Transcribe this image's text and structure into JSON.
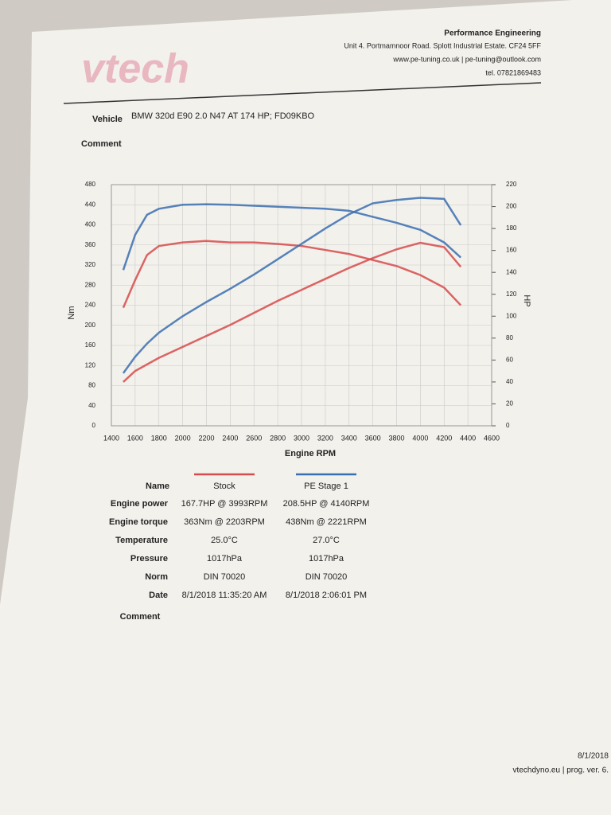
{
  "header": {
    "logo": "vtech",
    "company": "Performance Engineering",
    "address": "Unit 4. Portmamnoor Road. Splott Industrial Estate. CF24 5FF",
    "web": "www.pe-tuning.co.uk | pe-tuning@outlook.com",
    "phone": "tel. 07821869483"
  },
  "vehicle": {
    "label": "Vehicle",
    "value": "BMW 320d E90 2.0 N47 AT 174 HP; FD09KBO"
  },
  "comment_label": "Comment",
  "chart_data": {
    "type": "line",
    "x": [
      1500,
      1600,
      1700,
      1800,
      2000,
      2200,
      2400,
      2600,
      2800,
      3000,
      3200,
      3400,
      3600,
      3800,
      4000,
      4200,
      4340
    ],
    "series": [
      {
        "name": "Stock",
        "color": "#d64b4b",
        "values": [
          235,
          290,
          340,
          358,
          365,
          368,
          365,
          365,
          362,
          358,
          350,
          342,
          330,
          318,
          300,
          275,
          240
        ]
      },
      {
        "name": "PE Stage 1",
        "color": "#3a6fb0",
        "values": [
          310,
          380,
          420,
          432,
          440,
          441,
          440,
          438,
          436,
          434,
          432,
          428,
          416,
          404,
          390,
          365,
          335
        ]
      },
      {
        "color": "#d64b4b",
        "axis": "y2",
        "values": [
          40,
          50,
          56,
          62,
          72,
          82,
          92,
          103,
          114,
          124,
          134,
          144,
          153,
          161,
          167,
          163,
          145
        ]
      },
      {
        "color": "#3a6fb0",
        "axis": "y2",
        "values": [
          48,
          63,
          75,
          85,
          100,
          113,
          125,
          138,
          152,
          166,
          180,
          193,
          203,
          206,
          208,
          207,
          183
        ]
      }
    ],
    "xlabel": "Engine RPM",
    "ylabel": "Nm",
    "y2label": "HP",
    "xlim": [
      1400,
      4600
    ],
    "xticks": [
      1400,
      1600,
      1800,
      2000,
      2200,
      2400,
      2600,
      2800,
      3000,
      3200,
      3400,
      3600,
      3800,
      4000,
      4200,
      4400,
      4600
    ],
    "ylim": [
      0,
      480
    ],
    "yticks": [
      0,
      40,
      80,
      120,
      160,
      200,
      240,
      280,
      320,
      360,
      400,
      440,
      480
    ],
    "y2lim": [
      0,
      220
    ],
    "y2ticks": [
      0,
      20,
      40,
      60,
      80,
      100,
      120,
      140,
      160,
      180,
      200,
      220
    ],
    "grid": true
  },
  "table": {
    "name_label": "Name",
    "rows": [
      [
        "Engine power",
        "167.7HP @ 3993RPM",
        "208.5HP @ 4140RPM"
      ],
      [
        "Engine torque",
        "363Nm @ 2203RPM",
        "438Nm @ 2221RPM"
      ],
      [
        "Temperature",
        "25.0°C",
        "27.0°C"
      ],
      [
        "Pressure",
        "1017hPa",
        "1017hPa"
      ],
      [
        "Norm",
        "DIN 70020",
        "DIN 70020"
      ],
      [
        "Date",
        "8/1/2018 11:35:20 AM",
        "8/1/2018 2:06:01 PM"
      ]
    ],
    "comment_label": "Comment"
  },
  "footer": {
    "date": "8/1/2018",
    "program": "vtechdyno.eu | prog. ver. 6."
  }
}
